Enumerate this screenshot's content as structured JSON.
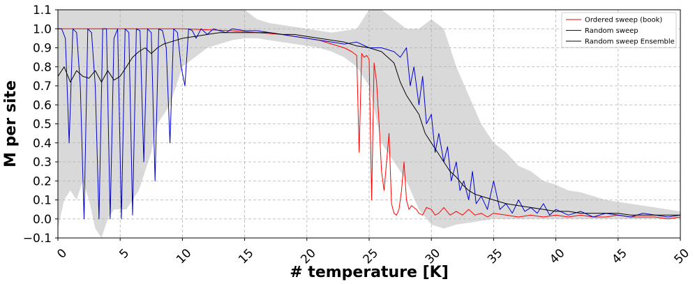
{
  "chart_data": {
    "type": "line",
    "title": "",
    "xlabel": "# temperature [K]",
    "ylabel": "M per site",
    "xlim": [
      0,
      50
    ],
    "ylim": [
      -0.1,
      1.1
    ],
    "x_ticks": [
      "0",
      "5",
      "10",
      "15",
      "20",
      "25",
      "30",
      "35",
      "40",
      "45",
      "50"
    ],
    "y_ticks": [
      "−0.1",
      "0.0",
      "0.1",
      "0.2",
      "0.3",
      "0.4",
      "0.5",
      "0.6",
      "0.7",
      "0.8",
      "0.9",
      "1.0",
      "1.1"
    ],
    "grid": true,
    "legend_position": "top-right",
    "series": [
      {
        "name": "Ordered sweep (book)",
        "color": "#ff0000",
        "x": [
          0,
          5,
          10,
          14,
          16,
          18,
          20,
          21,
          22,
          23,
          23.6,
          24,
          24.2,
          24.4,
          24.6,
          24.8,
          25,
          25.2,
          25.4,
          25.6,
          25.8,
          26,
          26.2,
          26.4,
          26.6,
          26.8,
          27,
          27.2,
          27.4,
          27.6,
          27.8,
          28,
          28.2,
          28.4,
          28.6,
          28.8,
          29,
          29.3,
          29.6,
          30,
          30.3,
          30.6,
          31,
          31.5,
          32,
          32.5,
          33,
          33.5,
          34,
          34.5,
          35,
          36,
          37,
          38,
          39,
          40,
          41,
          42,
          43,
          44,
          45,
          46,
          47,
          48,
          49,
          50
        ],
        "y": [
          1.0,
          1.0,
          1.0,
          0.99,
          0.98,
          0.97,
          0.95,
          0.94,
          0.92,
          0.9,
          0.88,
          0.86,
          0.35,
          0.87,
          0.85,
          0.86,
          0.84,
          0.1,
          0.82,
          0.72,
          0.5,
          0.25,
          0.15,
          0.3,
          0.45,
          0.08,
          0.03,
          0.02,
          0.05,
          0.15,
          0.3,
          0.1,
          0.05,
          0.07,
          0.06,
          0.05,
          0.03,
          0.02,
          0.06,
          0.05,
          0.02,
          0.03,
          0.06,
          0.02,
          0.04,
          0.02,
          0.05,
          0.02,
          0.03,
          0.01,
          0.03,
          0.02,
          0.01,
          0.02,
          0.01,
          0.02,
          0.01,
          0.02,
          0.01,
          0.01,
          0.02,
          0.01,
          0.01,
          0.01,
          0.0,
          0.01
        ]
      },
      {
        "name": "Random sweep",
        "color": "#0000cc",
        "x": [
          0,
          0.3,
          0.6,
          0.9,
          1.2,
          1.5,
          1.8,
          2.1,
          2.4,
          2.7,
          3,
          3.3,
          3.6,
          3.9,
          4.2,
          4.5,
          4.8,
          5.1,
          5.4,
          5.7,
          6,
          6.3,
          6.6,
          6.9,
          7.2,
          7.5,
          7.8,
          8.1,
          8.4,
          8.7,
          9,
          9.3,
          9.6,
          9.9,
          10.2,
          10.5,
          10.8,
          11.1,
          11.5,
          12,
          12.5,
          13,
          13.5,
          14,
          15,
          16,
          17,
          18,
          19,
          20,
          21,
          22,
          23,
          24,
          25,
          26,
          27,
          27.5,
          28,
          28.3,
          28.6,
          29,
          29.3,
          29.6,
          30,
          30.3,
          30.6,
          31,
          31.3,
          31.6,
          32,
          32.3,
          32.6,
          33,
          33.3,
          33.6,
          34,
          34.5,
          35,
          35.5,
          36,
          36.5,
          37,
          37.5,
          38,
          38.5,
          39,
          39.5,
          40,
          41,
          42,
          43,
          44,
          45,
          46,
          47,
          48,
          49,
          50
        ],
        "y": [
          1.0,
          1.0,
          0.95,
          0.4,
          1.0,
          0.98,
          0.7,
          0.0,
          1.0,
          0.98,
          0.7,
          0.0,
          1.0,
          1.0,
          0.0,
          0.95,
          1.0,
          0.0,
          1.0,
          0.98,
          0.02,
          1.0,
          0.99,
          0.3,
          1.0,
          0.98,
          0.2,
          1.0,
          0.99,
          0.9,
          0.4,
          1.0,
          0.98,
          0.8,
          0.7,
          1.0,
          0.99,
          0.95,
          1.0,
          0.97,
          1.0,
          0.99,
          0.98,
          1.0,
          0.99,
          0.99,
          0.98,
          0.97,
          0.96,
          0.95,
          0.94,
          0.93,
          0.92,
          0.93,
          0.9,
          0.9,
          0.88,
          0.85,
          0.9,
          0.7,
          0.8,
          0.6,
          0.75,
          0.5,
          0.55,
          0.35,
          0.45,
          0.3,
          0.38,
          0.2,
          0.3,
          0.15,
          0.2,
          0.1,
          0.25,
          0.08,
          0.12,
          0.05,
          0.2,
          0.05,
          0.08,
          0.03,
          0.1,
          0.04,
          0.06,
          0.03,
          0.08,
          0.02,
          0.05,
          0.02,
          0.04,
          0.01,
          0.03,
          0.02,
          0.01,
          0.03,
          0.02,
          0.01,
          0.02
        ]
      },
      {
        "name": "Random sweep Ensemble",
        "color": "#000000",
        "x": [
          0,
          0.5,
          1,
          1.5,
          2,
          2.5,
          3,
          3.5,
          4,
          4.5,
          5,
          5.5,
          6,
          6.5,
          7,
          7.5,
          8,
          8.5,
          9,
          10,
          11,
          12,
          13,
          14,
          15,
          16,
          17,
          18,
          19,
          20,
          21,
          22,
          23,
          24,
          25,
          26,
          27,
          27.5,
          28,
          28.5,
          29,
          29.5,
          30,
          30.5,
          31,
          31.5,
          32,
          32.5,
          33,
          33.5,
          34,
          35,
          36,
          37,
          38,
          39,
          40,
          41,
          42,
          43,
          44,
          45,
          46,
          47,
          48,
          49,
          50
        ],
        "y": [
          0.75,
          0.8,
          0.72,
          0.78,
          0.75,
          0.74,
          0.78,
          0.72,
          0.78,
          0.73,
          0.75,
          0.8,
          0.85,
          0.88,
          0.9,
          0.87,
          0.9,
          0.92,
          0.93,
          0.95,
          0.96,
          0.97,
          0.98,
          0.98,
          0.98,
          0.98,
          0.98,
          0.97,
          0.97,
          0.96,
          0.95,
          0.94,
          0.93,
          0.91,
          0.9,
          0.88,
          0.82,
          0.72,
          0.65,
          0.6,
          0.55,
          0.45,
          0.4,
          0.35,
          0.3,
          0.25,
          0.22,
          0.18,
          0.15,
          0.13,
          0.12,
          0.1,
          0.08,
          0.07,
          0.06,
          0.05,
          0.04,
          0.04,
          0.03,
          0.03,
          0.03,
          0.03,
          0.02,
          0.02,
          0.02,
          0.02,
          0.02
        ]
      }
    ],
    "band": {
      "fill": "#d9d9d9",
      "x": [
        0,
        0.5,
        1,
        1.5,
        2,
        2.5,
        3,
        3.5,
        4,
        4.5,
        5,
        5.5,
        6,
        6.5,
        7,
        7.5,
        8,
        8.5,
        9,
        9.5,
        10,
        11,
        12,
        13,
        14,
        15,
        16,
        17,
        18,
        19,
        20,
        21,
        22,
        23,
        24,
        25,
        26,
        27,
        28,
        29,
        30,
        31,
        32,
        33,
        34,
        35,
        36,
        37,
        38,
        39,
        40,
        41,
        42,
        43,
        44,
        45,
        46,
        47,
        48,
        49,
        50
      ],
      "upper": [
        1.1,
        1.1,
        1.1,
        1.1,
        1.1,
        1.1,
        1.1,
        1.1,
        1.1,
        1.1,
        1.1,
        1.1,
        1.1,
        1.1,
        1.1,
        1.1,
        1.1,
        1.1,
        1.1,
        1.1,
        1.1,
        1.1,
        1.1,
        1.1,
        1.1,
        1.1,
        1.05,
        1.03,
        1.02,
        1.01,
        1.0,
        0.99,
        0.98,
        0.99,
        1.0,
        1.1,
        1.1,
        1.05,
        1.0,
        1.0,
        1.05,
        1.0,
        0.8,
        0.65,
        0.5,
        0.4,
        0.35,
        0.28,
        0.25,
        0.2,
        0.18,
        0.15,
        0.14,
        0.12,
        0.1,
        0.09,
        0.08,
        0.07,
        0.06,
        0.05,
        0.04
      ],
      "lower": [
        -0.05,
        0.1,
        0.15,
        0.1,
        0.2,
        0.1,
        -0.05,
        -0.1,
        0.0,
        0.05,
        0.05,
        0.05,
        0.1,
        0.15,
        0.25,
        0.35,
        0.5,
        0.55,
        0.6,
        0.7,
        0.8,
        0.85,
        0.9,
        0.92,
        0.94,
        0.95,
        0.95,
        0.94,
        0.93,
        0.92,
        0.91,
        0.9,
        0.88,
        0.85,
        0.8,
        0.7,
        0.4,
        0.3,
        0.2,
        0.05,
        -0.03,
        -0.05,
        -0.03,
        -0.02,
        -0.01,
        0.0,
        0.0,
        0.0,
        0.0,
        0.0,
        0.0,
        0.0,
        0.0,
        0.0,
        0.0,
        0.0,
        0.0,
        0.0,
        0.0,
        0.0,
        0.0
      ]
    }
  }
}
